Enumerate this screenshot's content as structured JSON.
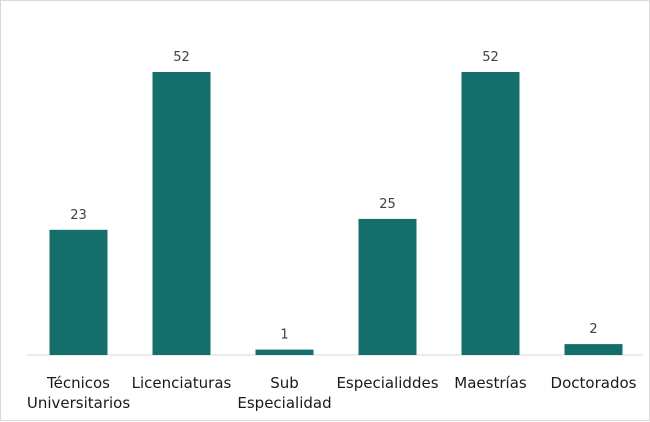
{
  "chart_data": {
    "type": "bar",
    "categories": [
      [
        "Técnicos",
        "Universitarios"
      ],
      [
        "Licenciaturas"
      ],
      [
        "Sub",
        "Especialidad"
      ],
      [
        "Especialiddes"
      ],
      [
        "Maestrías"
      ],
      [
        "Doctorados"
      ]
    ],
    "values": [
      23,
      52,
      1,
      25,
      52,
      2
    ],
    "data_labels": [
      "23",
      "52",
      "1",
      "25",
      "52",
      "2"
    ],
    "ylim": [
      0,
      52
    ],
    "grid": false,
    "legend": "none",
    "colors": {
      "bar": "#146e6b",
      "axis": "#d9d9d9"
    }
  }
}
